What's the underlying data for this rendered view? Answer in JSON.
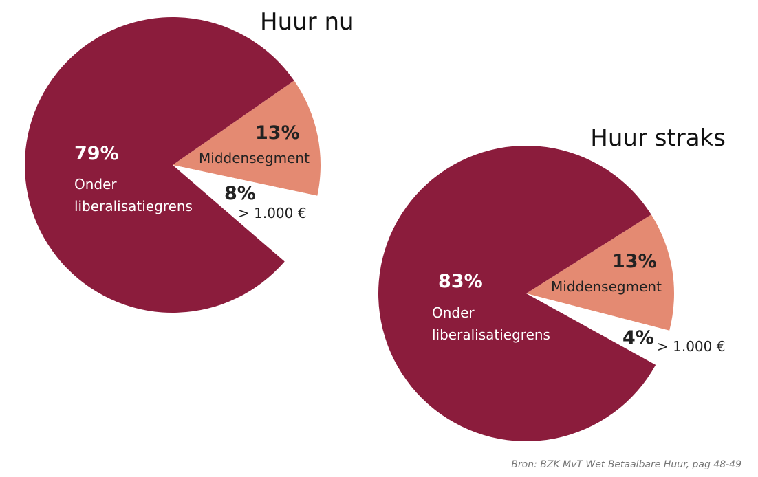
{
  "chart_data": [
    {
      "type": "pie",
      "title": "Huur nu",
      "categories": [
        "Middensegment",
        "> 1.000 €",
        "Onder liberalisatiegrens"
      ],
      "values": [
        13,
        8,
        79
      ],
      "value_labels": [
        "13%",
        "8%",
        "79%"
      ],
      "colors": [
        "#e48a72",
        "#ffffff",
        "#8b1c3c"
      ]
    },
    {
      "type": "pie",
      "title": "Huur straks",
      "categories": [
        "Middensegment",
        "> 1.000 €",
        "Onder liberalisatiegrens"
      ],
      "values": [
        13,
        4,
        83
      ],
      "value_labels": [
        "13%",
        "4%",
        "83%"
      ],
      "colors": [
        "#e48a72",
        "#ffffff",
        "#8b1c3c"
      ]
    }
  ],
  "source": "Bron: BZK MvT Wet Betaalbare Huur, pag 48-49"
}
